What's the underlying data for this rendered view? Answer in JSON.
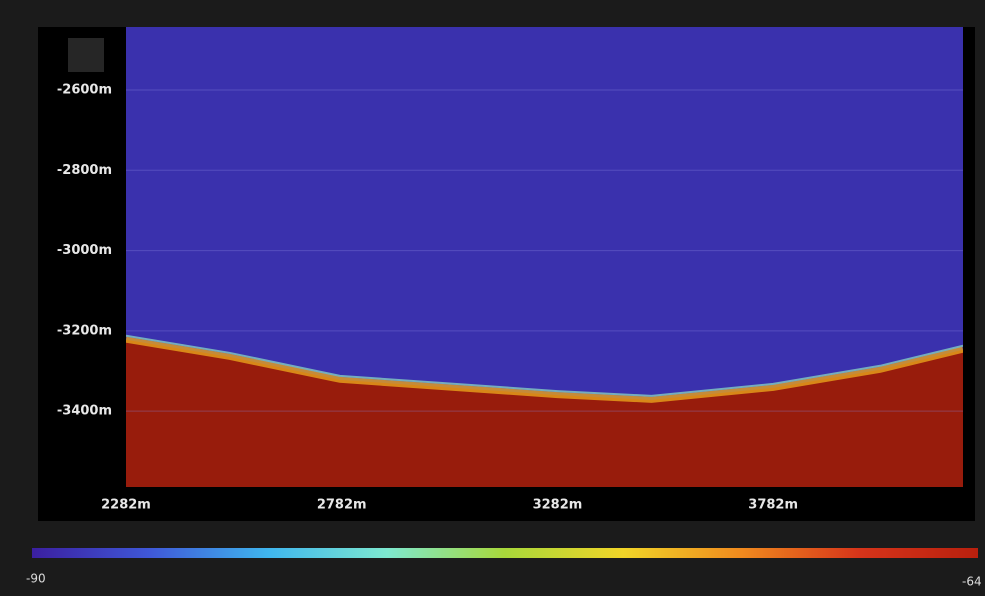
{
  "chart_data": {
    "type": "heatmap",
    "x": [
      2282,
      2523,
      2778,
      3282,
      3500,
      3782,
      4030,
      4222
    ],
    "values": [
      -3222,
      -3265,
      -3322,
      -3360,
      -3372,
      -3342,
      -3297,
      -3247
    ],
    "xlim": [
      2282,
      4222
    ],
    "ylim": [
      -3589,
      -2443
    ],
    "xticks": [
      {
        "value": 2282,
        "label": "2282m"
      },
      {
        "value": 2782,
        "label": "2782m"
      },
      {
        "value": 3282,
        "label": "3282m"
      },
      {
        "value": 3782,
        "label": "3782m"
      }
    ],
    "yticks": [
      {
        "value": -2600,
        "label": "-2600m"
      },
      {
        "value": -2800,
        "label": "-2800m"
      },
      {
        "value": -3000,
        "label": "-3000m"
      },
      {
        "value": -3200,
        "label": "-3200m"
      },
      {
        "value": -3400,
        "label": "-3400m"
      }
    ],
    "grid": true,
    "water_color": "#3a31ad",
    "seabed_color": "#981c0c",
    "colorbar": {
      "min": -90,
      "max": -64,
      "colors": [
        "#3b1fa0",
        "#3f58d8",
        "#3fb6ee",
        "#7de8d0",
        "#a8d83a",
        "#f1d528",
        "#f08a1e",
        "#d6341a",
        "#b8200e"
      ]
    }
  }
}
